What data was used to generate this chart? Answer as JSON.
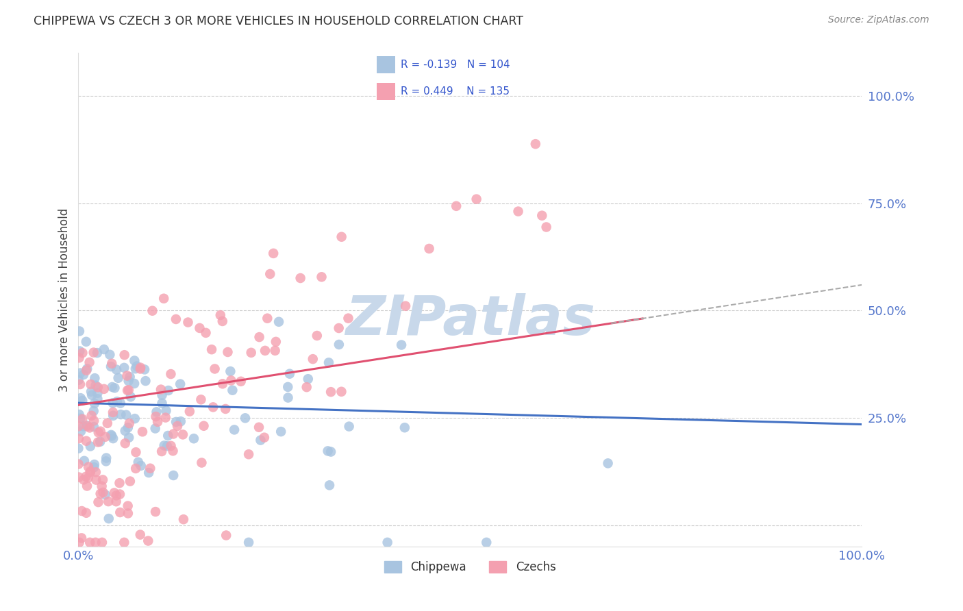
{
  "title": "CHIPPEWA VS CZECH 3 OR MORE VEHICLES IN HOUSEHOLD CORRELATION CHART",
  "source": "Source: ZipAtlas.com",
  "ylabel": "3 or more Vehicles in Household",
  "chippewa_color": "#a8c4e0",
  "czech_color": "#f4a0b0",
  "chippewa_line_color": "#4472c4",
  "czech_line_color": "#e05070",
  "R_chippewa": -0.139,
  "N_chippewa": 104,
  "R_czech": 0.449,
  "N_czech": 135,
  "legend_label_chippewa": "Chippewa",
  "legend_label_czech": "Czechs",
  "watermark": "ZIPatlas",
  "watermark_color": "#c8d8ea",
  "xlim": [
    0.0,
    1.0
  ],
  "ylim": [
    -0.05,
    1.1
  ],
  "ytick_positions": [
    0.0,
    0.25,
    0.5,
    0.75,
    1.0
  ],
  "ytick_labels": [
    "",
    "25.0%",
    "50.0%",
    "75.0%",
    "100.0%"
  ],
  "background_color": "#ffffff",
  "grid_color": "#cccccc"
}
